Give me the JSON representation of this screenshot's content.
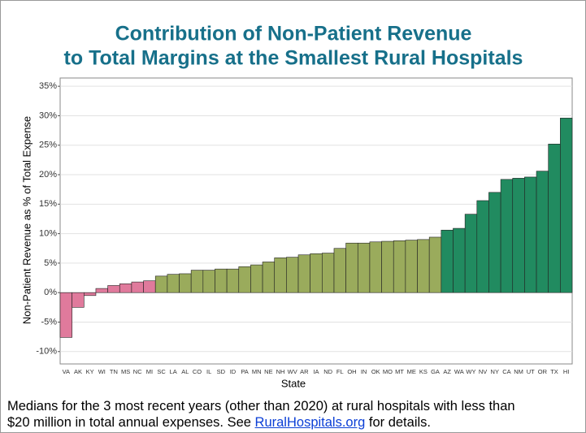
{
  "chart_data": {
    "type": "bar",
    "title": [
      "Contribution of Non-Patient Revenue",
      "to Total Margins at the Smallest Rural Hospitals"
    ],
    "x_label": "State",
    "y_label": "Non-Patient Revenue as % of Total Expense",
    "categories": [
      "VA",
      "AK",
      "KY",
      "WI",
      "TN",
      "MS",
      "NC",
      "MI",
      "SC",
      "LA",
      "AL",
      "CO",
      "IL",
      "SD",
      "ID",
      "PA",
      "MN",
      "NE",
      "NH",
      "WV",
      "AR",
      "IA",
      "ND",
      "FL",
      "OH",
      "IN",
      "OK",
      "MO",
      "MT",
      "ME",
      "KS",
      "GA",
      "AZ",
      "WA",
      "WY",
      "NV",
      "NY",
      "CA",
      "NM",
      "UT",
      "OR",
      "TX",
      "HI"
    ],
    "values": [
      -7.6,
      -2.5,
      -0.5,
      0.7,
      1.2,
      1.5,
      1.8,
      2.0,
      2.8,
      3.1,
      3.2,
      3.8,
      3.8,
      4.0,
      4.0,
      4.4,
      4.7,
      5.2,
      5.9,
      6.0,
      6.4,
      6.6,
      6.7,
      7.5,
      8.4,
      8.4,
      8.6,
      8.7,
      8.8,
      8.9,
      9.0,
      9.4,
      10.6,
      10.9,
      13.3,
      15.6,
      17.0,
      19.2,
      19.4,
      19.6,
      20.6,
      25.2,
      29.6
    ],
    "colors": [
      "#e07a9c",
      "#e07a9c",
      "#e07a9c",
      "#e07a9c",
      "#e07a9c",
      "#e07a9c",
      "#e07a9c",
      "#e07a9c",
      "#9aab5c",
      "#9aab5c",
      "#9aab5c",
      "#9aab5c",
      "#9aab5c",
      "#9aab5c",
      "#9aab5c",
      "#9aab5c",
      "#9aab5c",
      "#9aab5c",
      "#9aab5c",
      "#9aab5c",
      "#9aab5c",
      "#9aab5c",
      "#9aab5c",
      "#9aab5c",
      "#9aab5c",
      "#9aab5c",
      "#9aab5c",
      "#9aab5c",
      "#9aab5c",
      "#9aab5c",
      "#9aab5c",
      "#9aab5c",
      "#218b60",
      "#218b60",
      "#218b60",
      "#218b60",
      "#218b60",
      "#218b60",
      "#218b60",
      "#218b60",
      "#218b60",
      "#218b60",
      "#218b60"
    ],
    "ylim": [
      -12.1,
      36.4
    ],
    "yticks": [
      {
        "value": -10,
        "label": "-10%"
      },
      {
        "value": -5,
        "label": "-5%"
      },
      {
        "value": 0,
        "label": "0%"
      },
      {
        "value": 5,
        "label": "5%"
      },
      {
        "value": 10,
        "label": "10%"
      },
      {
        "value": 15,
        "label": "15%"
      },
      {
        "value": 20,
        "label": "20%"
      },
      {
        "value": 25,
        "label": "25%"
      },
      {
        "value": 30,
        "label": "30%"
      },
      {
        "value": 35,
        "label": "35%"
      }
    ],
    "grid": true
  },
  "footer": {
    "line1": "Medians for the 3 most recent years (other than 2020) at rural hospitals with less than",
    "line2_before": "$20 million in total annual expenses.  See ",
    "link": "RuralHospitals.org",
    "line2_after": " for details."
  }
}
